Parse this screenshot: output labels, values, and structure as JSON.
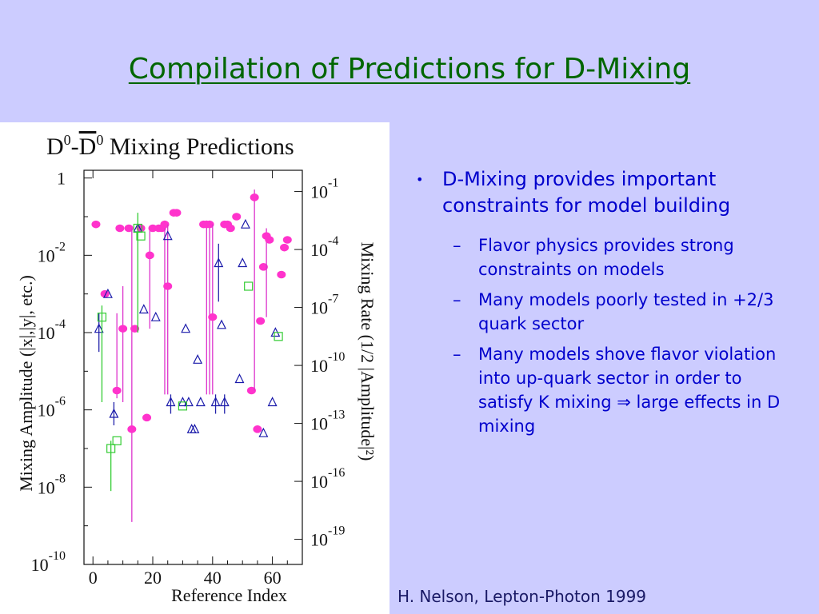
{
  "slide": {
    "title": "Compilation of Predictions for D-Mixing",
    "footer": "H. Nelson, Lepton-Photon 1999",
    "bullets": [
      {
        "marker": "•",
        "text": "D-Mixing provides important constraints for model building",
        "sub": [
          {
            "marker": "–",
            "text": "Flavor physics provides strong constraints on models"
          },
          {
            "marker": "–",
            "text": "Many models poorly tested in +2/3 quark sector"
          },
          {
            "marker": "–",
            "text": "Many models shove flavor violation into up-quark sector in order to satisfy K mixing ⇒ large effects in D mixing"
          }
        ]
      }
    ]
  },
  "chart_data": {
    "type": "scatter",
    "title": "D0-D0 Mixing Predictions",
    "xlabel": "Reference Index",
    "ylabel": "Mixing Amplitude (|x|,|y|, etc.)",
    "y2label": "Mixing Rate (1/2 |Amplitude|²)",
    "xlim": [
      -3,
      70
    ],
    "ylim_log10": [
      -10,
      0.2
    ],
    "y_log": true,
    "x_ticks": [
      "0",
      "20",
      "40",
      "60"
    ],
    "x_tick_values": [
      0,
      20,
      40,
      60
    ],
    "y_ticks_left": [
      {
        "base": "1",
        "exp": "",
        "value": 0
      },
      {
        "base": "10",
        "exp": "-2",
        "value": -2
      },
      {
        "base": "10",
        "exp": "-4",
        "value": -4
      },
      {
        "base": "10",
        "exp": "-6",
        "value": -6
      },
      {
        "base": "10",
        "exp": "-8",
        "value": -8
      },
      {
        "base": "10",
        "exp": "-10",
        "value": -10
      }
    ],
    "y_ticks_right": [
      {
        "base": "10",
        "exp": "-1",
        "amp_log10": -0.35
      },
      {
        "base": "10",
        "exp": "-4",
        "amp_log10": -1.85
      },
      {
        "base": "10",
        "exp": "-7",
        "amp_log10": -3.35
      },
      {
        "base": "10",
        "exp": "-10",
        "amp_log10": -4.85
      },
      {
        "base": "10",
        "exp": "-13",
        "amp_log10": -6.35
      },
      {
        "base": "10",
        "exp": "-16",
        "amp_log10": -7.85
      },
      {
        "base": "10",
        "exp": "-19",
        "amp_log10": -9.35
      }
    ],
    "colors": {
      "circle": "#ff33cc",
      "triangle": "#1a1aaa",
      "square": "#33cc33",
      "circle_bar": "#dd33cc",
      "triangle_bar": "#2222aa",
      "square_bar": "#33cc33"
    },
    "series": [
      {
        "marker": "circle",
        "points": [
          {
            "x": 1,
            "y": -1.2
          },
          {
            "x": 4,
            "y": -3.0
          },
          {
            "x": 8,
            "y": -5.5,
            "lo": -5.7,
            "hi": -3.5
          },
          {
            "x": 9,
            "y": -1.3
          },
          {
            "x": 10,
            "y": -3.9,
            "lo": -5.8,
            "hi": -2.8
          },
          {
            "x": 12,
            "y": -1.3
          },
          {
            "x": 13,
            "y": -6.5,
            "lo": -8.9,
            "hi": -1.3
          },
          {
            "x": 14,
            "y": -3.9
          },
          {
            "x": 16,
            "y": -1.3
          },
          {
            "x": 18,
            "y": -6.2
          },
          {
            "x": 19,
            "y": -2.0,
            "lo": -3.9,
            "hi": -1.3
          },
          {
            "x": 20,
            "y": -1.3
          },
          {
            "x": 22,
            "y": -1.3
          },
          {
            "x": 23,
            "y": -1.3
          },
          {
            "x": 24,
            "y": -1.2,
            "lo": -5.6,
            "hi": -1.1
          },
          {
            "x": 25,
            "y": -2.8,
            "lo": -5.6,
            "hi": -1.2
          },
          {
            "x": 27,
            "y": -0.9
          },
          {
            "x": 28,
            "y": -0.9
          },
          {
            "x": 37,
            "y": -1.2
          },
          {
            "x": 38,
            "y": -1.2,
            "lo": -5.6,
            "hi": -1.1
          },
          {
            "x": 39,
            "y": -1.2,
            "lo": -5.6,
            "hi": -1.1
          },
          {
            "x": 40,
            "y": -3.6,
            "lo": -5.6,
            "hi": -1.2
          },
          {
            "x": 44,
            "y": -1.2
          },
          {
            "x": 45,
            "y": -1.2
          },
          {
            "x": 46,
            "y": -1.3
          },
          {
            "x": 48,
            "y": -1.0
          },
          {
            "x": 53,
            "y": -5.5
          },
          {
            "x": 54,
            "y": -0.5,
            "lo": -5.5,
            "hi": -0.3
          },
          {
            "x": 55,
            "y": -6.5
          },
          {
            "x": 56,
            "y": -3.7
          },
          {
            "x": 57,
            "y": -2.3
          },
          {
            "x": 58,
            "y": -1.5,
            "lo": -3.6,
            "hi": -1.3
          },
          {
            "x": 59,
            "y": -1.6
          },
          {
            "x": 63,
            "y": -2.5
          },
          {
            "x": 64,
            "y": -1.8
          },
          {
            "x": 65,
            "y": -1.6
          }
        ]
      },
      {
        "marker": "triangle",
        "points": [
          {
            "x": 2,
            "y": -3.9,
            "lo": -4.5,
            "hi": -3.5
          },
          {
            "x": 5,
            "y": -3.0
          },
          {
            "x": 7,
            "y": -6.1,
            "lo": -6.4,
            "hi": -5.8
          },
          {
            "x": 15,
            "y": -1.3
          },
          {
            "x": 17,
            "y": -3.4
          },
          {
            "x": 21,
            "y": -3.6
          },
          {
            "x": 25,
            "y": -1.5
          },
          {
            "x": 26,
            "y": -5.8,
            "lo": -6.1,
            "hi": -5.6
          },
          {
            "x": 30,
            "y": -5.8
          },
          {
            "x": 31,
            "y": -3.9
          },
          {
            "x": 32,
            "y": -5.8
          },
          {
            "x": 33,
            "y": -6.5
          },
          {
            "x": 34,
            "y": -6.5
          },
          {
            "x": 35,
            "y": -4.7
          },
          {
            "x": 36,
            "y": -5.8
          },
          {
            "x": 41,
            "y": -5.8,
            "lo": -6.1,
            "hi": -5.6
          },
          {
            "x": 42,
            "y": -2.2,
            "lo": -3.2,
            "hi": -1.7
          },
          {
            "x": 43,
            "y": -3.8
          },
          {
            "x": 44,
            "y": -5.8,
            "lo": -6.1,
            "hi": -5.6
          },
          {
            "x": 49,
            "y": -5.2
          },
          {
            "x": 50,
            "y": -2.2
          },
          {
            "x": 51,
            "y": -1.2
          },
          {
            "x": 57,
            "y": -6.6
          },
          {
            "x": 60,
            "y": -5.8
          },
          {
            "x": 61,
            "y": -4.0
          }
        ]
      },
      {
        "marker": "square",
        "points": [
          {
            "x": 3,
            "y": -3.6,
            "lo": -5.8,
            "hi": -3.3
          },
          {
            "x": 6,
            "y": -7.0,
            "lo": -8.1,
            "hi": -6.8
          },
          {
            "x": 8,
            "y": -6.8
          },
          {
            "x": 15,
            "y": -1.3,
            "lo": -4.0,
            "hi": -0.9
          },
          {
            "x": 16,
            "y": -1.5
          },
          {
            "x": 30,
            "y": -5.9
          },
          {
            "x": 52,
            "y": -2.8
          },
          {
            "x": 62,
            "y": -4.1
          }
        ]
      }
    ],
    "grid": false,
    "legend": "none"
  }
}
